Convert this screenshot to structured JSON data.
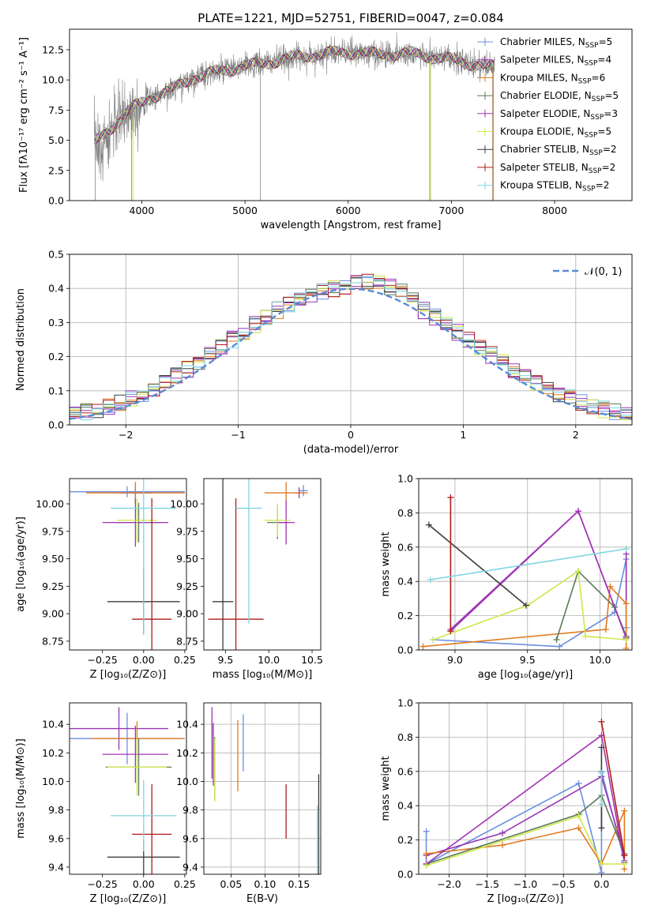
{
  "figure": {
    "title": "PLATE=1221, MJD=52751, FIBERID=0047, z=0.084"
  },
  "colors": {
    "MILES_Chabrier": "#6a8fe0",
    "MILES_Salpeter": "#9a35b3",
    "MILES_Kroupa": "#e07a20",
    "ELODIE_Chabrier": "#5a7a5a",
    "ELODIE_Salpeter": "#a233b5",
    "ELODIE_Kroupa": "#cde84a",
    "STELIB_Chabrier": "#3d3d3d",
    "STELIB_Salpeter": "#b01a1a",
    "STELIB_Kroupa": "#7ed6e0",
    "normal": "#5a8ad8",
    "data": "#808080"
  },
  "chart_data": [
    {
      "id": "spectrum",
      "type": "line",
      "xlabel": "wavelength [Angstrom, rest frame]",
      "ylabel": "Flux [fλ10⁻¹⁷ erg cm⁻² s⁻¹ A⁻¹]",
      "xlim": [
        3300,
        8750
      ],
      "ylim": [
        0,
        14.2
      ],
      "xticks": [
        4000,
        5000,
        6000,
        7000,
        8000
      ],
      "yticks": [
        0.0,
        2.5,
        5.0,
        7.5,
        10.0,
        12.5
      ],
      "legend_position": "right",
      "legend": [
        "Chabrier MILES, N_SSP=5",
        "Salpeter MILES, N_SSP=4",
        "Kroupa MILES, N_SSP=6",
        "Chabrier ELODIE, N_SSP=5",
        "Salpeter ELODIE, N_SSP=3",
        "Kroupa ELODIE, N_SSP=5",
        "Chabrier STELIB, N_SSP=2",
        "Salpeter STELIB, N_SSP=2",
        "Kroupa STELIB, N_SSP=2"
      ],
      "continuum_x": [
        3550,
        3700,
        3900,
        4100,
        4300,
        4500,
        4800,
        5200,
        5500,
        5800,
        6000,
        6300,
        6600,
        6900,
        7100,
        7300,
        7400
      ],
      "continuum_y": [
        4.8,
        6.0,
        7.6,
        8.6,
        9.2,
        10.2,
        10.8,
        11.4,
        11.9,
        12.2,
        12.3,
        12.1,
        12.2,
        11.8,
        11.5,
        11.2,
        11.0
      ]
    },
    {
      "id": "residuals",
      "type": "histogram",
      "xlabel": "(data-model)/error",
      "ylabel": "Normed distribution",
      "xlim": [
        -2.5,
        2.5
      ],
      "ylim": [
        0,
        0.5
      ],
      "xticks": [
        -2,
        -1,
        0,
        1,
        2
      ],
      "yticks": [
        0.0,
        0.1,
        0.2,
        0.3,
        0.4,
        0.5
      ],
      "grid": true,
      "legend": [
        "𝒩(0, 1)"
      ],
      "legend_position": "top-right",
      "bin_width": 0.1
    },
    {
      "id": "age_vs_Z",
      "type": "errorbar",
      "xlabel": "Z [log₁₀(Z/Z⊙)]",
      "ylabel": "age  [log₁₀(age/yr)]",
      "xlim": [
        -0.45,
        0.26
      ],
      "ylim": [
        8.67,
        10.23
      ],
      "xticks": [
        -0.25,
        0.0,
        0.25
      ],
      "yticks": [
        8.75,
        9.0,
        9.25,
        9.5,
        9.75,
        10.0
      ],
      "points": [
        {
          "color": "MILES_Chabrier",
          "x": -0.1,
          "xerr": 0.35,
          "y": 10.11,
          "yerr": 0.05
        },
        {
          "color": "MILES_Salpeter",
          "x": -0.05,
          "xerr": 0.1,
          "y": 10.1,
          "yerr": 0.05
        },
        {
          "color": "MILES_Kroupa",
          "x": -0.05,
          "xerr": 0.3,
          "y": 10.1,
          "yerr": 0.1
        },
        {
          "color": "ELODIE_Chabrier",
          "x": -0.03,
          "xerr": 0.14,
          "y": 9.83,
          "yerr": 0.18
        },
        {
          "color": "ELODIE_Salpeter",
          "x": -0.05,
          "xerr": 0.2,
          "y": 9.83,
          "yerr": 0.22
        },
        {
          "color": "ELODIE_Kroupa",
          "x": -0.04,
          "xerr": 0.12,
          "y": 9.85,
          "yerr": 0.2
        },
        {
          "color": "STELIB_Chabrier",
          "x": 0.0,
          "xerr": 0.22,
          "y": 9.11,
          "yerr": 0.3
        },
        {
          "color": "STELIB_Salpeter",
          "x": 0.05,
          "xerr": 0.12,
          "y": 8.95,
          "yerr": 1.1
        },
        {
          "color": "STELIB_Kroupa",
          "x": 0.0,
          "xerr": 0.2,
          "y": 9.96,
          "yerr": 1.15
        }
      ]
    },
    {
      "id": "age_vs_mass",
      "type": "errorbar",
      "xlabel": "mass [log₁₀(M/M⊙)]",
      "ylabel": "",
      "xlim": [
        9.25,
        10.6
      ],
      "ylim": [
        8.67,
        10.23
      ],
      "xticks": [
        9.5,
        10.0,
        10.5
      ],
      "yticks": [
        8.75,
        9.0,
        9.25,
        9.5,
        9.75,
        10.0
      ],
      "points": [
        {
          "color": "MILES_Chabrier",
          "x": 10.4,
          "xerr": 0.05,
          "y": 10.12,
          "yerr": 0.05
        },
        {
          "color": "MILES_Salpeter",
          "x": 10.35,
          "xerr": 0.05,
          "y": 10.1,
          "yerr": 0.05
        },
        {
          "color": "MILES_Kroupa",
          "x": 10.2,
          "xerr": 0.25,
          "y": 10.1,
          "yerr": 0.1
        },
        {
          "color": "ELODIE_Chabrier",
          "x": 10.1,
          "xerr": 0.12,
          "y": 9.83,
          "yerr": 0.15
        },
        {
          "color": "ELODIE_Salpeter",
          "x": 10.2,
          "xerr": 0.1,
          "y": 9.83,
          "yerr": 0.2
        },
        {
          "color": "ELODIE_Kroupa",
          "x": 10.1,
          "xerr": 0.15,
          "y": 9.85,
          "yerr": 0.15
        },
        {
          "color": "STELIB_Chabrier",
          "x": 9.47,
          "xerr": 0.12,
          "y": 9.11,
          "yerr": 1.2
        },
        {
          "color": "STELIB_Salpeter",
          "x": 9.62,
          "xerr": 0.32,
          "y": 8.95,
          "yerr": 1.1
        },
        {
          "color": "STELIB_Kroupa",
          "x": 9.77,
          "xerr": 0.15,
          "y": 9.96,
          "yerr": 1.05
        }
      ]
    },
    {
      "id": "massweight_vs_age",
      "type": "line",
      "xlabel": "age  [log₁₀(age/yr)]",
      "ylabel": "mass weight",
      "xlim": [
        8.75,
        10.22
      ],
      "ylim": [
        0,
        1.0
      ],
      "xticks": [
        9.0,
        9.5,
        10.0
      ],
      "yticks": [
        0.0,
        0.2,
        0.4,
        0.6,
        0.8,
        1.0
      ],
      "series": [
        {
          "color": "MILES_Chabrier",
          "x": [
            8.85,
            9.72,
            10.1,
            10.18,
            10.18
          ],
          "y": [
            0.06,
            0.02,
            0.22,
            0.53,
            0.13
          ]
        },
        {
          "color": "MILES_Salpeter",
          "x": [
            8.97,
            9.85,
            10.18,
            10.18
          ],
          "y": [
            0.11,
            0.81,
            0.07,
            0.56
          ]
        },
        {
          "color": "MILES_Kroupa",
          "x": [
            8.78,
            10.04,
            10.07,
            10.18,
            10.18
          ],
          "y": [
            0.02,
            0.12,
            0.37,
            0.27,
            0.01
          ]
        },
        {
          "color": "ELODIE_Chabrier",
          "x": [
            9.7,
            9.85,
            10.1,
            10.18
          ],
          "y": [
            0.06,
            0.46,
            0.25,
            0.08
          ]
        },
        {
          "color": "ELODIE_Salpeter",
          "x": [
            8.97,
            9.85,
            10.18
          ],
          "y": [
            0.12,
            0.81,
            0.07
          ]
        },
        {
          "color": "ELODIE_Kroupa",
          "x": [
            8.85,
            9.5,
            9.85,
            9.9,
            10.18
          ],
          "y": [
            0.06,
            0.26,
            0.46,
            0.08,
            0.06
          ]
        },
        {
          "color": "STELIB_Chabrier",
          "x": [
            8.82,
            9.49
          ],
          "y": [
            0.73,
            0.26
          ]
        },
        {
          "color": "STELIB_Salpeter",
          "x": [
            8.97,
            8.97
          ],
          "y": [
            0.89,
            0.11
          ]
        },
        {
          "color": "STELIB_Kroupa",
          "x": [
            8.83,
            10.18
          ],
          "y": [
            0.41,
            0.59
          ]
        }
      ]
    },
    {
      "id": "mass_vs_Z",
      "type": "errorbar",
      "xlabel": "Z [log₁₀(Z/Z⊙)]",
      "ylabel": "mass [log₁₀(M/M⊙)]",
      "xlim": [
        -0.45,
        0.26
      ],
      "ylim": [
        9.35,
        10.55
      ],
      "xticks": [
        -0.25,
        0.0,
        0.25
      ],
      "yticks": [
        9.4,
        9.6,
        9.8,
        10.0,
        10.2,
        10.4
      ],
      "points": [
        {
          "color": "MILES_Chabrier",
          "x": -0.1,
          "xerr": 0.35,
          "y": 10.3,
          "yerr": 0.18
        },
        {
          "color": "MILES_Salpeter",
          "x": -0.15,
          "xerr": 0.3,
          "y": 10.37,
          "yerr": 0.15
        },
        {
          "color": "MILES_Kroupa",
          "x": -0.04,
          "xerr": 0.28,
          "y": 10.3,
          "yerr": 0.12
        },
        {
          "color": "ELODIE_Chabrier",
          "x": -0.03,
          "xerr": 0.2,
          "y": 10.1,
          "yerr": 0.2
        },
        {
          "color": "ELODIE_Salpeter",
          "x": -0.05,
          "xerr": 0.2,
          "y": 10.19,
          "yerr": 0.2
        },
        {
          "color": "ELODIE_Kroupa",
          "x": -0.04,
          "xerr": 0.18,
          "y": 10.1,
          "yerr": 0.2
        },
        {
          "color": "STELIB_Chabrier",
          "x": 0.0,
          "xerr": 0.22,
          "y": 9.47,
          "yerr": 0.12
        },
        {
          "color": "STELIB_Salpeter",
          "x": 0.05,
          "xerr": 0.12,
          "y": 9.63,
          "yerr": 0.35
        },
        {
          "color": "STELIB_Kroupa",
          "x": 0.0,
          "xerr": 0.2,
          "y": 9.76,
          "yerr": 0.25
        }
      ]
    },
    {
      "id": "mass_vs_ebv",
      "type": "errorbar",
      "xlabel": "E(B-V)",
      "ylabel": "",
      "xlim": [
        0.01,
        0.182
      ],
      "ylim": [
        9.35,
        10.55
      ],
      "xticks": [
        0.05,
        0.1,
        0.15
      ],
      "yticks": [
        9.4,
        9.6,
        9.8,
        10.0,
        10.2,
        10.4
      ],
      "points": [
        {
          "color": "MILES_Chabrier",
          "x": 0.068,
          "yerr": 0.2,
          "y": 10.27
        },
        {
          "color": "MILES_Salpeter",
          "x": 0.022,
          "yerr": 0.25,
          "y": 10.27
        },
        {
          "color": "MILES_Kroupa",
          "x": 0.06,
          "yerr": 0.25,
          "y": 10.18
        },
        {
          "color": "ELODIE_Chabrier",
          "x": 0.026,
          "yerr": 0.22,
          "y": 10.09
        },
        {
          "color": "ELODIE_Salpeter",
          "x": 0.024,
          "yerr": 0.22,
          "y": 10.19
        },
        {
          "color": "ELODIE_Kroupa",
          "x": 0.026,
          "yerr": 0.22,
          "y": 10.08
        },
        {
          "color": "STELIB_Chabrier",
          "x": 0.179,
          "yerr": 0.45,
          "y": 9.6
        },
        {
          "color": "STELIB_Salpeter",
          "x": 0.131,
          "yerr": 0.19,
          "y": 9.79
        },
        {
          "color": "STELIB_Kroupa",
          "x": 0.177,
          "yerr": 0.3,
          "y": 9.53
        }
      ]
    },
    {
      "id": "massweight_vs_Z",
      "type": "line",
      "xlabel": "Z [log₁₀(Z/Z⊙)]",
      "ylabel": "mass weight",
      "xlim": [
        -2.4,
        0.4
      ],
      "ylim": [
        0,
        1.0
      ],
      "xticks": [
        -2.0,
        -1.5,
        -1.0,
        -0.5,
        0.0
      ],
      "yticks": [
        0.0,
        0.2,
        0.4,
        0.6,
        0.8,
        1.0
      ],
      "series": [
        {
          "color": "MILES_Chabrier",
          "x": [
            -2.3,
            -2.3,
            -0.3,
            0.0,
            0.0,
            0.3
          ],
          "y": [
            0.25,
            0.06,
            0.53,
            0.01,
            0.6,
            0.08
          ]
        },
        {
          "color": "MILES_Salpeter",
          "x": [
            -2.3,
            -1.3,
            0.0,
            0.3
          ],
          "y": [
            0.11,
            0.24,
            0.57,
            0.11
          ]
        },
        {
          "color": "MILES_Kroupa",
          "x": [
            -2.3,
            -1.3,
            -0.3,
            0.0,
            0.3,
            0.3
          ],
          "y": [
            0.12,
            0.17,
            0.27,
            0.06,
            0.37,
            0.03
          ]
        },
        {
          "color": "ELODIE_Chabrier",
          "x": [
            -2.3,
            -0.3,
            0.0,
            0.3
          ],
          "y": [
            0.06,
            0.35,
            0.46,
            0.12
          ]
        },
        {
          "color": "ELODIE_Salpeter",
          "x": [
            -2.3,
            0.0,
            0.3
          ],
          "y": [
            0.06,
            0.81,
            0.07
          ]
        },
        {
          "color": "ELODIE_Kroupa",
          "x": [
            -2.3,
            -0.3,
            0.0,
            0.3
          ],
          "y": [
            0.05,
            0.34,
            0.06,
            0.06
          ]
        },
        {
          "color": "STELIB_Chabrier",
          "x": [
            0.0,
            0.0
          ],
          "y": [
            0.74,
            0.27
          ]
        },
        {
          "color": "STELIB_Salpeter",
          "x": [
            0.0,
            0.3
          ],
          "y": [
            0.89,
            0.11
          ]
        },
        {
          "color": "STELIB_Kroupa",
          "x": [
            0.0,
            0.0
          ],
          "y": [
            0.41,
            0.59
          ]
        }
      ]
    }
  ]
}
